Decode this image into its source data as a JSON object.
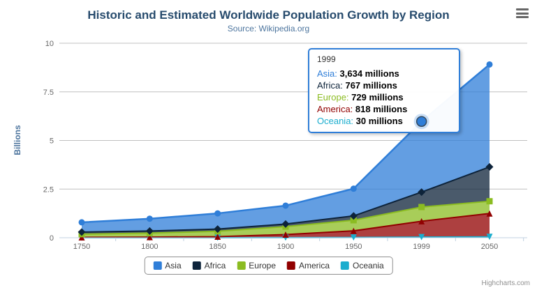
{
  "title": "Historic and Estimated Worldwide Population Growth by Region",
  "subtitle": "Source: Wikipedia.org",
  "ylabel": "Billions",
  "credits": "Highcharts.com",
  "chart_data": {
    "type": "area",
    "stacked": true,
    "title": "Historic and Estimated Worldwide Population Growth by Region",
    "subtitle": "Source: Wikipedia.org",
    "ylabel": "Billions",
    "unit": "millions",
    "categories": [
      "1750",
      "1800",
      "1850",
      "1900",
      "1950",
      "1999",
      "2050"
    ],
    "ylim": [
      0,
      10
    ],
    "yticks": [
      0,
      2.5,
      5,
      7.5,
      10
    ],
    "grid": true,
    "legend_position": "bottom",
    "series": [
      {
        "name": "Asia",
        "color": "#2f7ed8",
        "marker": "circle",
        "values": [
          502,
          635,
          809,
          947,
          1402,
          3634,
          5268
        ]
      },
      {
        "name": "Africa",
        "color": "#0d233a",
        "marker": "diamond",
        "values": [
          106,
          107,
          111,
          133,
          221,
          767,
          1766
        ]
      },
      {
        "name": "Europe",
        "color": "#8bbc21",
        "marker": "square",
        "values": [
          163,
          203,
          276,
          408,
          547,
          729,
          628
        ]
      },
      {
        "name": "America",
        "color": "#910000",
        "marker": "triangle",
        "values": [
          18,
          31,
          54,
          156,
          339,
          818,
          1201
        ]
      },
      {
        "name": "Oceania",
        "color": "#1aadce",
        "marker": "triangle-down",
        "values": [
          2,
          2,
          2,
          6,
          13,
          30,
          46
        ]
      }
    ],
    "hover": {
      "category": "1999",
      "series": "Asia"
    },
    "tooltip": {
      "header": "1999",
      "border_color": "#2f7ed8",
      "rows": [
        {
          "name": "Asia",
          "color": "#2f7ed8",
          "value": "3,634 millions"
        },
        {
          "name": "Africa",
          "color": "#0d233a",
          "value": "767 millions"
        },
        {
          "name": "Europe",
          "color": "#8bbc21",
          "value": "729 millions"
        },
        {
          "name": "America",
          "color": "#910000",
          "value": "818 millions"
        },
        {
          "name": "Oceania",
          "color": "#1aadce",
          "value": "30 millions"
        }
      ]
    }
  }
}
